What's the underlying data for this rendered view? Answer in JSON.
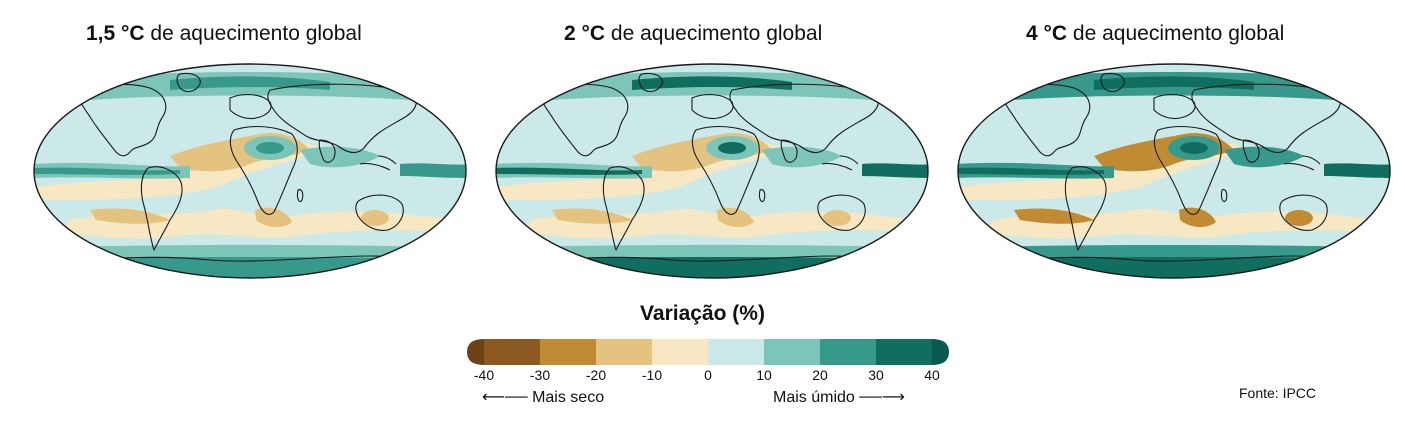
{
  "maps": [
    {
      "temp": "1,5 °C",
      "label": " de aquecimento global",
      "intensity": 1.0
    },
    {
      "temp": "2 °C",
      "label": " de aquecimento global",
      "intensity": 1.25
    },
    {
      "temp": "4 °C",
      "label": " de aquecimento global",
      "intensity": 1.8
    }
  ],
  "legend": {
    "title": "Variação (%)",
    "ticks": [
      "-40",
      "-30",
      "-20",
      "-10",
      "0",
      "10",
      "20",
      "30",
      "40"
    ],
    "colors": [
      "#8c5a1f",
      "#c18b34",
      "#e4c27f",
      "#f7e7c2",
      "#cbe9e8",
      "#7dc5b8",
      "#36998b",
      "#0f6e60"
    ],
    "drier_label": "Mais seco",
    "wetter_label": "Mais úmido"
  },
  "source": "Fonte: IPCC"
}
